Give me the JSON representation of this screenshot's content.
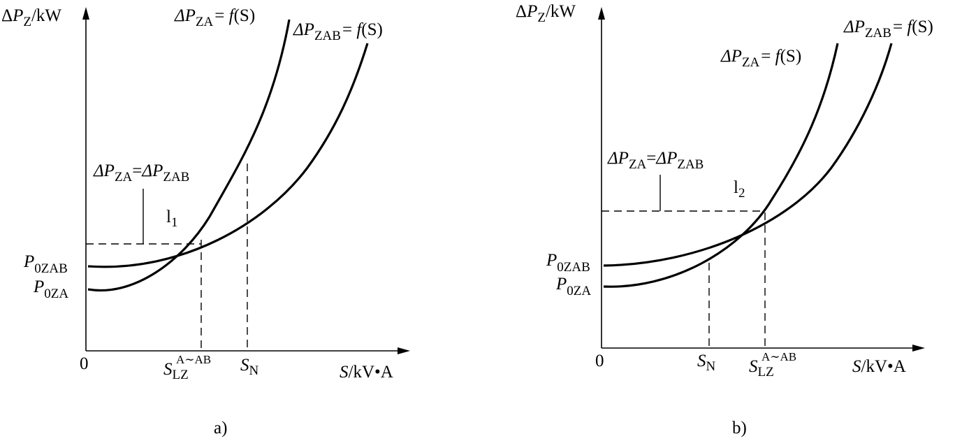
{
  "panel_a": {
    "caption": "a)",
    "y_axis_label": {
      "delta": "Δ",
      "var": "P",
      "sub": "Z",
      "unit": "/kW"
    },
    "x_axis_label": {
      "var": "S",
      "unit": "/kV•A"
    },
    "origin": "0",
    "curve_za_label": {
      "lhs": "ΔP",
      "sub": "ZA",
      "eq": "= ",
      "f": "f",
      "arg": "(S)"
    },
    "curve_zab_label": {
      "lhs": "ΔP",
      "sub": "ZAB",
      "eq": "= ",
      "f": "f",
      "arg": "(S)"
    },
    "equality_label": {
      "p1": "ΔP",
      "s1": "ZA",
      "eq": "=",
      "p2": "ΔP",
      "s2": "ZAB"
    },
    "intersection_label": {
      "base": "l",
      "sub": "1"
    },
    "p0zab": {
      "base": "P",
      "sub": "0ZAB"
    },
    "p0za": {
      "base": "P",
      "sub": "0ZA"
    },
    "slz": {
      "base": "S",
      "sub": "LZ",
      "sup": "A∼AB"
    },
    "sn": {
      "base": "S",
      "sub": "N"
    }
  },
  "panel_b": {
    "caption": "b)",
    "y_axis_label": {
      "delta": "Δ",
      "var": "P",
      "sub": "Z",
      "unit": "/kW"
    },
    "x_axis_label": {
      "var": "S",
      "unit": "/kV•A"
    },
    "origin": "0",
    "curve_za_label": {
      "lhs": "ΔP",
      "sub": "ZA",
      "eq": "= ",
      "f": "f",
      "arg": "(S)"
    },
    "curve_zab_label": {
      "lhs": "ΔP",
      "sub": "ZAB",
      "eq": "= ",
      "f": "f",
      "arg": "(S)"
    },
    "equality_label": {
      "p1": "ΔP",
      "s1": "ZA",
      "eq": "=",
      "p2": "ΔP",
      "s2": "ZAB"
    },
    "intersection_label": {
      "base": "l",
      "sub": "2"
    },
    "p0zab": {
      "base": "P",
      "sub": "0ZAB"
    },
    "p0za": {
      "base": "P",
      "sub": "0ZA"
    },
    "slz": {
      "base": "S",
      "sub": "LZ",
      "sup": "A∼AB"
    },
    "sn": {
      "base": "S",
      "sub": "N"
    }
  },
  "colors": {
    "ink": "#000000",
    "background": "#ffffff"
  }
}
